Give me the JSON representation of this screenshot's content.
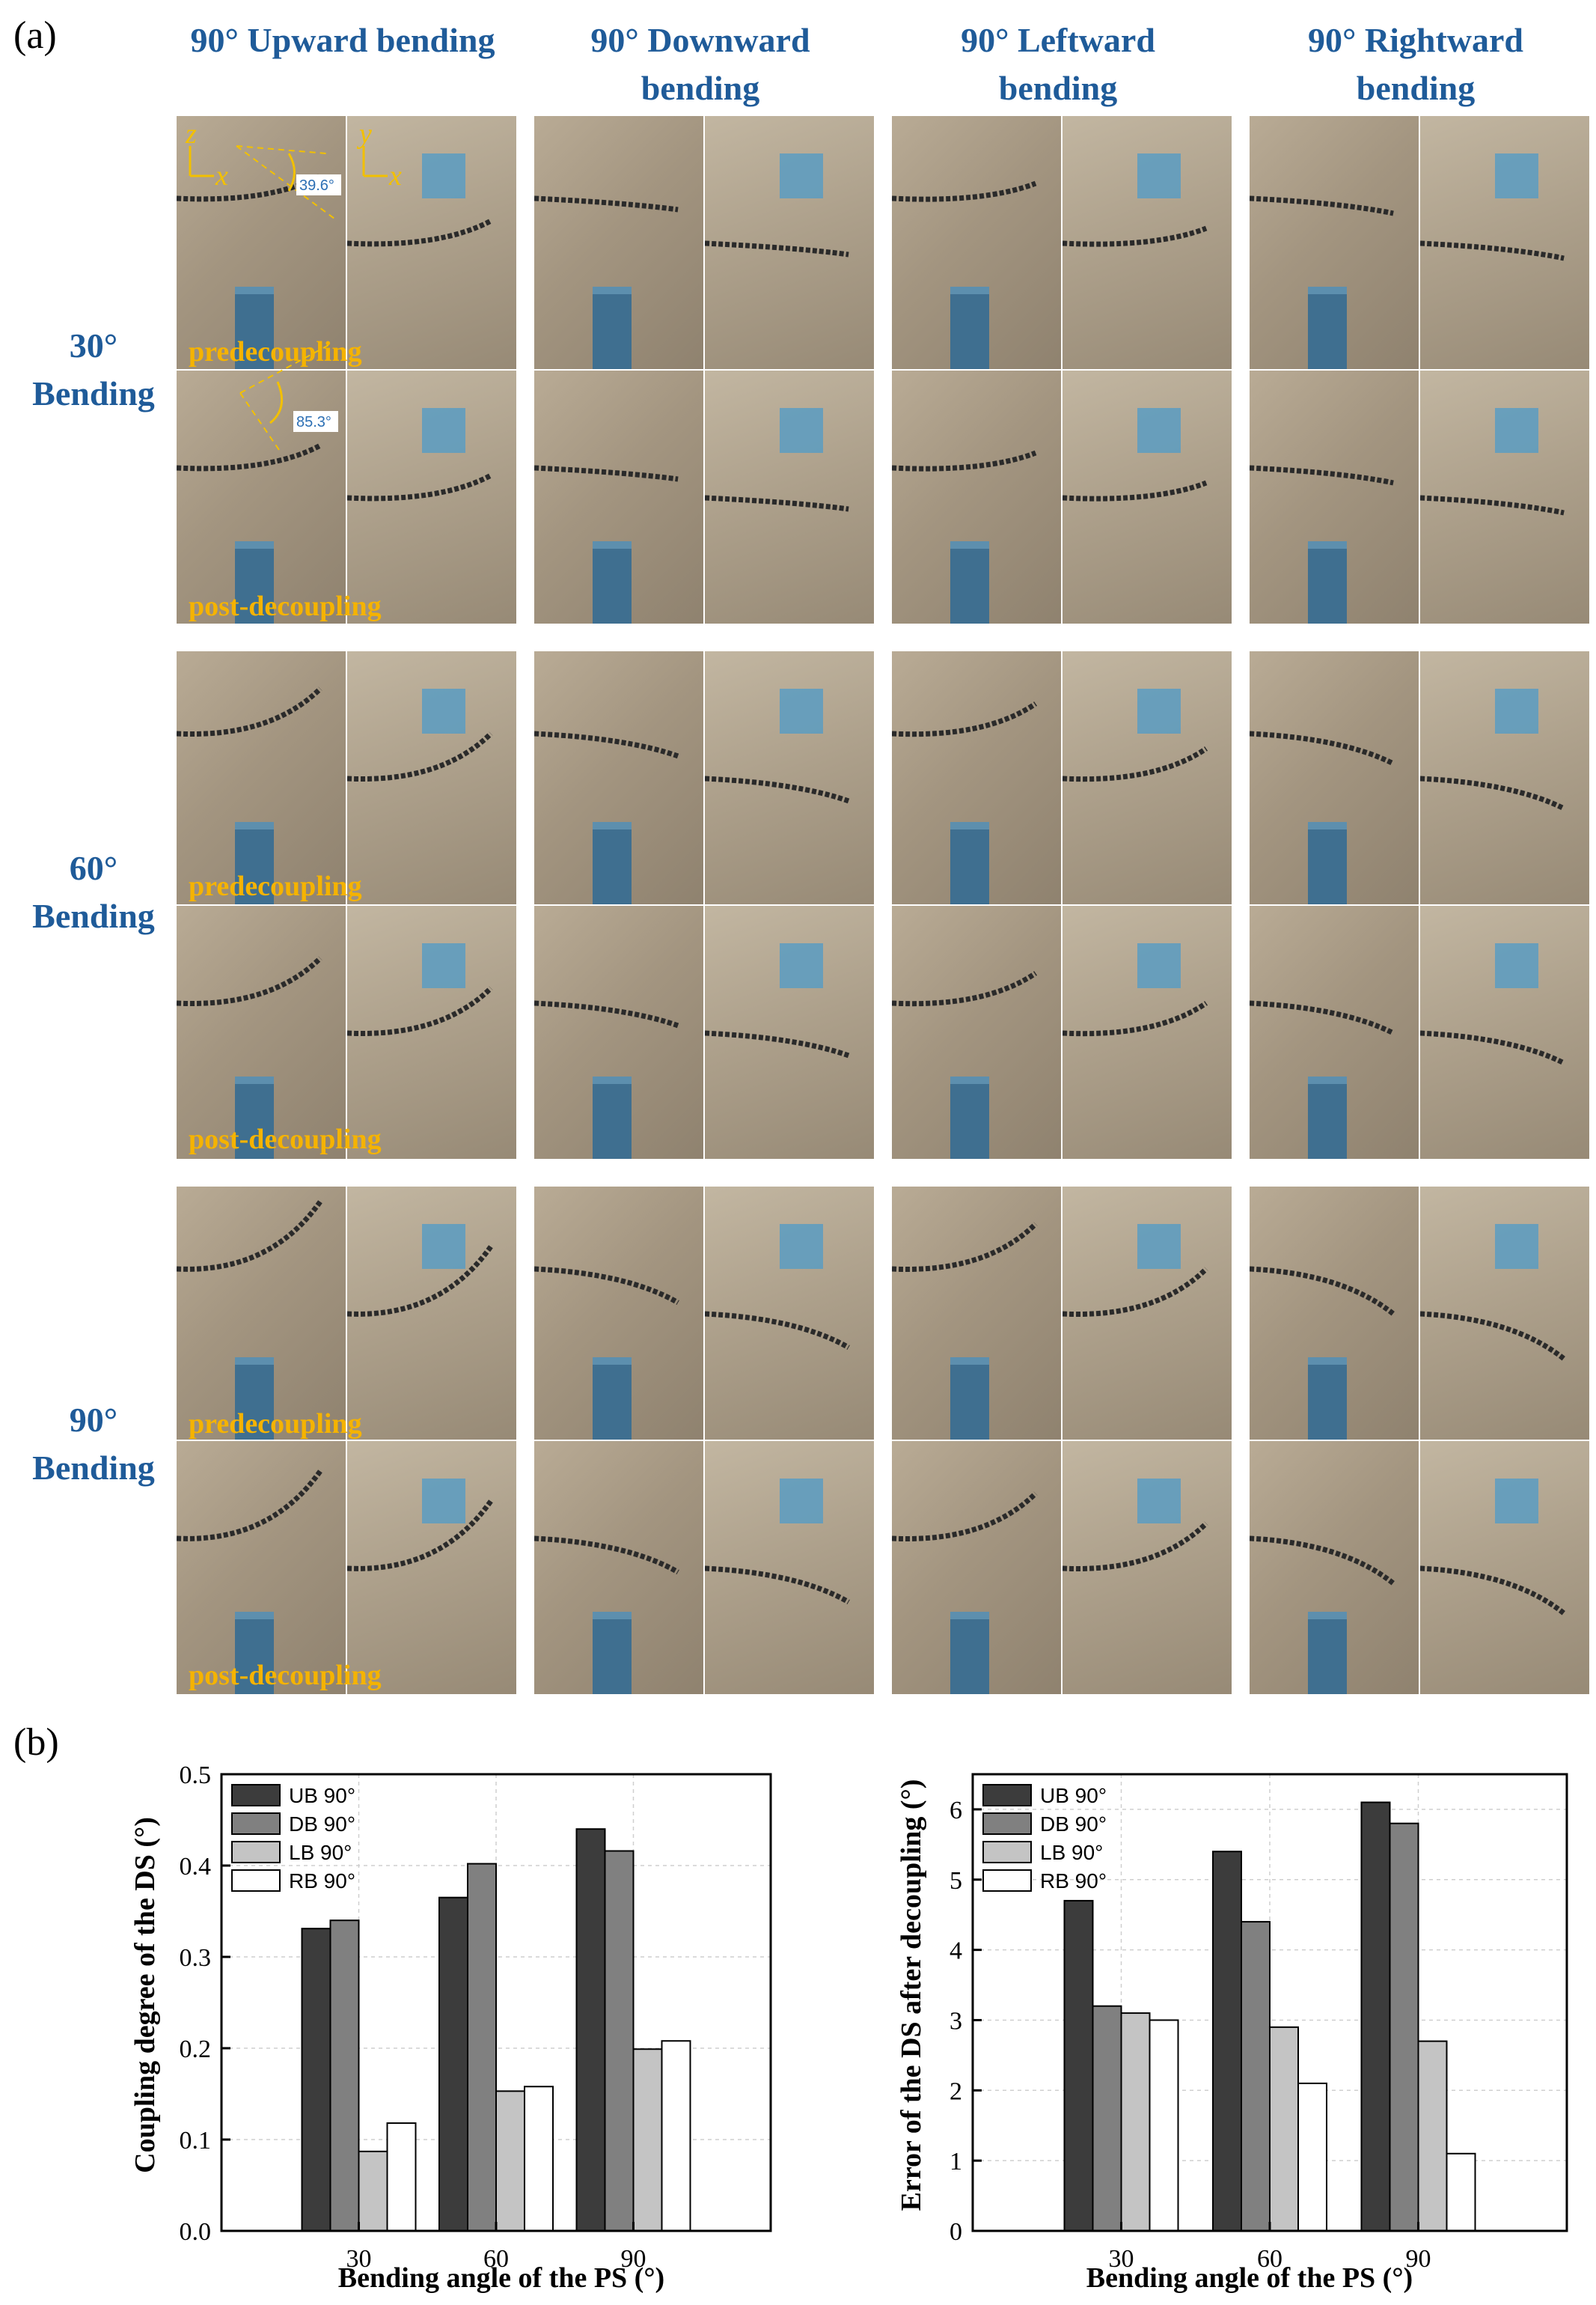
{
  "panel_a_label": "(a)",
  "panel_b_label": "(b)",
  "columns": [
    "90° Upward bending",
    "90° Downward bending",
    "90° Leftward bending",
    "90° Rightward bending"
  ],
  "rows": [
    "30° Bending",
    "60° Bending",
    "90° Bending"
  ],
  "stages": [
    "predecoupling",
    "post-decoupling"
  ],
  "annotations": {
    "axes_side": [
      "z",
      "x"
    ],
    "axes_top": [
      "y",
      "x"
    ],
    "angle_pre": "39.6°",
    "angle_post": "85.3°"
  },
  "chart_data": [
    {
      "type": "bar",
      "categories": [
        "30",
        "60",
        "90"
      ],
      "series": [
        {
          "name": "UB 90°",
          "values": [
            0.331,
            0.365,
            0.44
          ],
          "color": "#3c3c3c"
        },
        {
          "name": "DB 90°",
          "values": [
            0.34,
            0.402,
            0.416
          ],
          "color": "#808080"
        },
        {
          "name": "LB 90°",
          "values": [
            0.087,
            0.153,
            0.199
          ],
          "color": "#c4c4c4"
        },
        {
          "name": "RB 90°",
          "values": [
            0.118,
            0.158,
            0.208
          ],
          "color": "#ffffff"
        }
      ],
      "xlabel": "Bending angle of the PS (°)",
      "ylabel": "Coupling degree of the DS (°)",
      "ylim": [
        0,
        0.5
      ],
      "yticks": [
        "0.0",
        "0.1",
        "0.2",
        "0.3",
        "0.4",
        "0.5"
      ],
      "grid": true,
      "legend": "top-left"
    },
    {
      "type": "bar",
      "categories": [
        "30",
        "60",
        "90"
      ],
      "series": [
        {
          "name": "UB 90°",
          "values": [
            4.7,
            5.4,
            6.1
          ],
          "color": "#3c3c3c"
        },
        {
          "name": "DB 90°",
          "values": [
            3.2,
            4.4,
            5.8
          ],
          "color": "#808080"
        },
        {
          "name": "LB 90°",
          "values": [
            3.1,
            2.9,
            2.7
          ],
          "color": "#c4c4c4"
        },
        {
          "name": "RB 90°",
          "values": [
            3.0,
            2.1,
            1.1
          ],
          "color": "#ffffff"
        }
      ],
      "xlabel": "Bending angle of the PS (°)",
      "ylabel": "Error of the DS after decoupling (°)",
      "ylim": [
        0,
        6.5
      ],
      "yticks": [
        "0",
        "1",
        "2",
        "3",
        "4",
        "5",
        "6"
      ],
      "grid": true,
      "legend": "top-left"
    }
  ]
}
